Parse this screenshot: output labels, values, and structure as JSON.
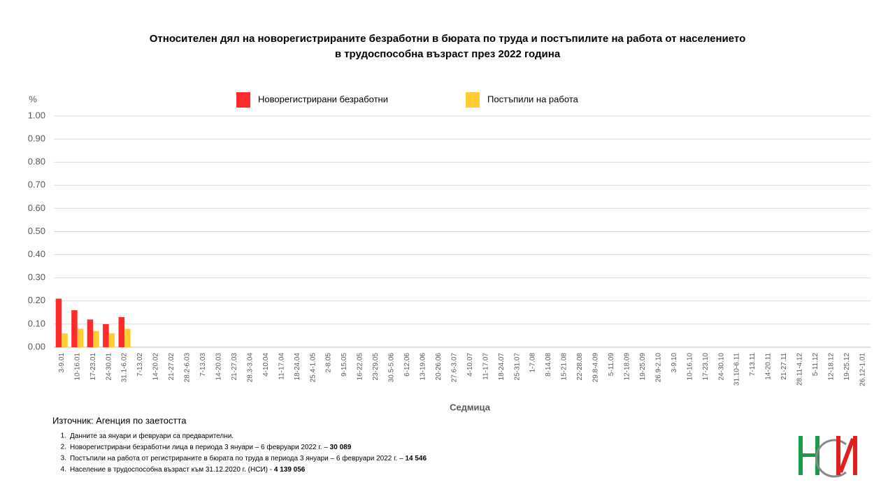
{
  "chart_data": {
    "type": "bar",
    "title": [
      "Относителен дял на новорегистрираните безработни в бюрата по труда и постъпилите на работа от населението",
      "в трудоспособна възраст през 2022 година"
    ],
    "ylabel": "%",
    "xlabel": "Седмица",
    "categories": [
      "3-9.01",
      "10-16.01",
      "17-23.01",
      "24-30.01",
      "31.1-6.02",
      "7-13.02",
      "14-20.02",
      "21-27.02",
      "28.2-6.03",
      "7-13.03",
      "14-20.03",
      "21-27.03",
      "28.3-3.04",
      "4-10.04",
      "11-17.04",
      "18-24.04",
      "25.4-1.05",
      "2-8.05",
      "9-15.05",
      "16-22.05",
      "23-29.05",
      "30.5-5.06",
      "6-12.06",
      "13-19.06",
      "20-26.06",
      "27.6-3.07",
      "4-10.07",
      "11-17.07",
      "18-24.07",
      "25-31.07",
      "1-7.08",
      "8-14.08",
      "15-21.08",
      "22-28.08",
      "29.8-4.09",
      "5-11.09",
      "12-18.09",
      "19-25.09",
      "26.9-2.10",
      "3-9.10",
      "10-16.10",
      "17-23.10",
      "24-30.10",
      "31.10-6.11",
      "7-13.11",
      "14-20.11",
      "21-27.11",
      "28.11-4.12",
      "5-11.12",
      "12-18.12",
      "19-25.12",
      "26.12-1.01"
    ],
    "series": [
      {
        "name": "Новорегистрирани безработни",
        "color": "#ff2a2a",
        "values": [
          0.21,
          0.16,
          0.12,
          0.1,
          0.13,
          null,
          null,
          null,
          null,
          null,
          null,
          null,
          null,
          null,
          null,
          null,
          null,
          null,
          null,
          null,
          null,
          null,
          null,
          null,
          null,
          null,
          null,
          null,
          null,
          null,
          null,
          null,
          null,
          null,
          null,
          null,
          null,
          null,
          null,
          null,
          null,
          null,
          null,
          null,
          null,
          null,
          null,
          null,
          null,
          null,
          null,
          null
        ]
      },
      {
        "name": "Постъпили на работа",
        "color": "#ffcc33",
        "values": [
          0.06,
          0.08,
          0.07,
          0.06,
          0.08,
          null,
          null,
          null,
          null,
          null,
          null,
          null,
          null,
          null,
          null,
          null,
          null,
          null,
          null,
          null,
          null,
          null,
          null,
          null,
          null,
          null,
          null,
          null,
          null,
          null,
          null,
          null,
          null,
          null,
          null,
          null,
          null,
          null,
          null,
          null,
          null,
          null,
          null,
          null,
          null,
          null,
          null,
          null,
          null,
          null,
          null,
          null
        ]
      }
    ],
    "ylim": [
      0,
      1
    ],
    "yticks": [
      {
        "value": 0,
        "label": "0.00"
      },
      {
        "value": 0.1,
        "label": "0.10"
      },
      {
        "value": 0.2,
        "label": "0.20"
      },
      {
        "value": 0.3,
        "label": "0.30"
      },
      {
        "value": 0.4,
        "label": "0.40"
      },
      {
        "value": 0.5,
        "label": "0.50"
      },
      {
        "value": 0.6,
        "label": "0.60"
      },
      {
        "value": 0.7,
        "label": "0.70"
      },
      {
        "value": 0.8,
        "label": "0.80"
      },
      {
        "value": 0.9,
        "label": "0.90"
      },
      {
        "value": 1,
        "label": "1.00"
      }
    ],
    "grid": true,
    "legend": "top"
  },
  "source": "Източник: Агенция по заетостта",
  "notes": [
    {
      "number": "1.",
      "text": "Данните за януари и февруари са предварителни."
    },
    {
      "number": "2.",
      "text": "Новорегистрирани безработни лица в периода 3 януари – 6 февруари 2022 г. –",
      "bold": "30 089"
    },
    {
      "number": "3.",
      "text": "Постъпили на работа от регистрираните в бюрата по труда в периода 3 януари – 6 февруари 2022 г. –",
      "bold": "14 546"
    },
    {
      "number": "4.",
      "text": "Население в трудоспособна възраст към 31.12.2020 г. (НСИ)  -",
      "bold": "4 139 056"
    }
  ],
  "logo": "НСИ"
}
